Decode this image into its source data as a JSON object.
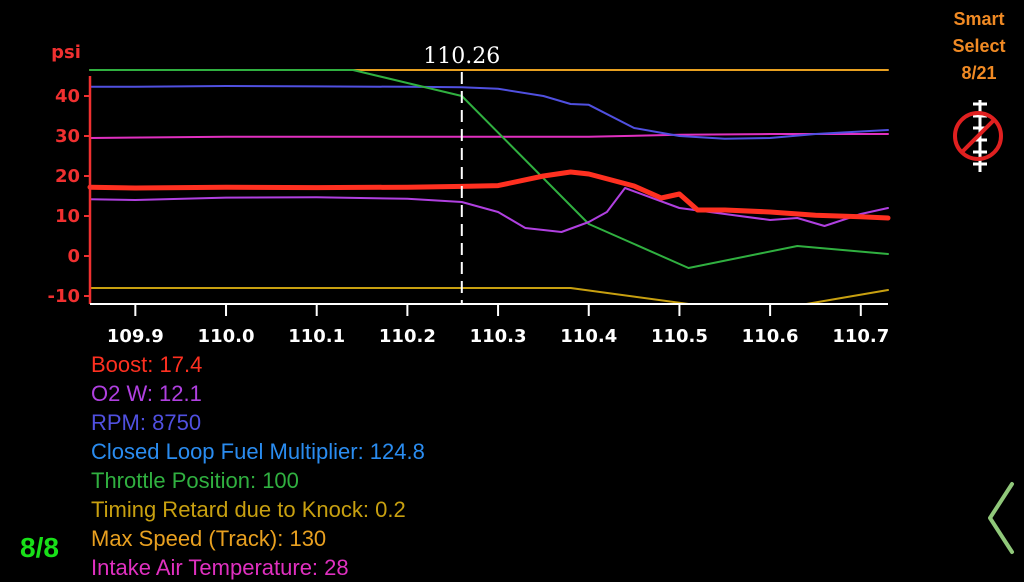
{
  "chart_data": {
    "type": "line",
    "ylabel": "psi",
    "xlim": [
      109.85,
      110.73
    ],
    "ylim": [
      -12,
      47
    ],
    "x_ticks": [
      109.9,
      110.0,
      110.1,
      110.2,
      110.3,
      110.4,
      110.5,
      110.6,
      110.7
    ],
    "x_tick_labels": [
      "109.9",
      "110.0",
      "110.1",
      "110.2",
      "110.3",
      "110.4",
      "110.5",
      "110.6",
      "110.7"
    ],
    "y_ticks": [
      -10,
      0,
      10,
      20,
      30,
      40
    ],
    "y_tick_labels": [
      "-10",
      "0",
      "10",
      "20",
      "30",
      "40"
    ],
    "cursor": {
      "x": 110.26,
      "label": "110.26"
    },
    "grid": false,
    "series": [
      {
        "name": "Max Speed (Track)",
        "color": "#e8a020",
        "width": 2,
        "x": [
          109.85,
          110.73
        ],
        "values": [
          46.5,
          46.5
        ]
      },
      {
        "name": "Intake Air Temperature",
        "color": "#e030c0",
        "width": 2,
        "x": [
          109.85,
          110.0,
          110.2,
          110.4,
          110.5,
          110.6,
          110.73
        ],
        "values": [
          29.5,
          29.8,
          29.8,
          29.8,
          30.3,
          30.5,
          30.5
        ]
      },
      {
        "name": "RPM",
        "color": "#5050e0",
        "width": 2,
        "x": [
          109.85,
          109.9,
          110.0,
          110.1,
          110.2,
          110.26,
          110.3,
          110.35,
          110.38,
          110.4,
          110.45,
          110.5,
          110.55,
          110.6,
          110.65,
          110.73
        ],
        "values": [
          42.3,
          42.3,
          42.5,
          42.4,
          42.3,
          42.2,
          41.8,
          40.0,
          38.0,
          37.8,
          32.0,
          30.0,
          29.3,
          29.5,
          30.5,
          31.5
        ]
      },
      {
        "name": "Throttle Position",
        "color": "#30b040",
        "width": 2,
        "x": [
          109.85,
          110.14,
          110.26,
          110.4,
          110.51,
          110.63,
          110.73
        ],
        "values": [
          46.5,
          46.5,
          40.0,
          8.0,
          -3.0,
          2.5,
          0.5
        ]
      },
      {
        "name": "Timing Retard due to Knock",
        "color": "#c8a010",
        "width": 2,
        "x": [
          109.85,
          110.38,
          110.51,
          110.64,
          110.73
        ],
        "values": [
          -8.0,
          -8.0,
          -12.0,
          -12.0,
          -8.5
        ]
      },
      {
        "name": "O2 W",
        "color": "#b040e0",
        "width": 2,
        "x": [
          109.85,
          109.9,
          110.0,
          110.1,
          110.2,
          110.26,
          110.3,
          110.33,
          110.37,
          110.4,
          110.42,
          110.44,
          110.5,
          110.55,
          110.6,
          110.63,
          110.66,
          110.7,
          110.73
        ],
        "values": [
          14.2,
          14.0,
          14.6,
          14.7,
          14.3,
          13.5,
          11.0,
          7.0,
          6.0,
          8.5,
          11.0,
          17.0,
          12.0,
          10.5,
          9.0,
          9.5,
          7.5,
          10.5,
          12.0
        ]
      },
      {
        "name": "Boost",
        "color": "#ff3020",
        "width": 5,
        "x": [
          109.85,
          109.9,
          110.0,
          110.1,
          110.2,
          110.26,
          110.3,
          110.35,
          110.38,
          110.4,
          110.45,
          110.48,
          110.5,
          110.52,
          110.55,
          110.6,
          110.65,
          110.7,
          110.73
        ],
        "values": [
          17.2,
          17.0,
          17.2,
          17.1,
          17.2,
          17.4,
          17.6,
          20.0,
          21.0,
          20.5,
          17.5,
          14.5,
          15.5,
          11.5,
          11.5,
          11.0,
          10.2,
          9.8,
          9.5
        ]
      }
    ]
  },
  "legend": [
    {
      "label": "Boost: 17.4",
      "color": "#ff3020"
    },
    {
      "label": "O2 W: 12.1",
      "color": "#b040e0"
    },
    {
      "label": "RPM: 8750",
      "color": "#5050e0"
    },
    {
      "label": "Closed Loop Fuel Multiplier: 124.8",
      "color": "#2a8cf0"
    },
    {
      "label": "Throttle Position: 100",
      "color": "#30b040"
    },
    {
      "label": "Timing Retard due to Knock: 0.2",
      "color": "#c8a010"
    },
    {
      "label": "Max Speed (Track): 130",
      "color": "#e8a020"
    },
    {
      "label": "Intake Air Temperature: 28",
      "color": "#e030c0"
    }
  ],
  "smart_select": {
    "line1": "Smart",
    "line2": "Select",
    "count": "8/21"
  },
  "page_counter": "8/8",
  "colors": {
    "axis": "#f03030",
    "tick_text": "#ffffff",
    "smart_select": "#f08a24",
    "counter": "#18e018",
    "chevron": "#90c87a",
    "no_icon": "#e02020"
  },
  "icons": {
    "smart_select_icon": "no-tool-icon",
    "back": "chevron-left-icon"
  }
}
